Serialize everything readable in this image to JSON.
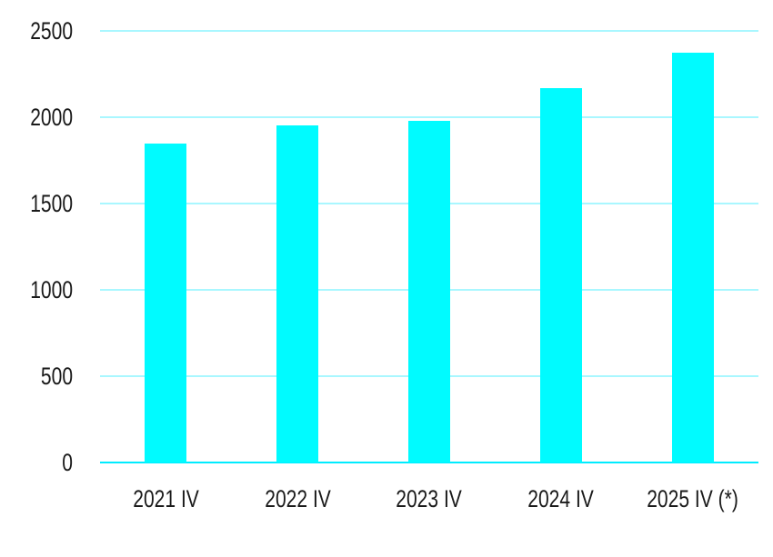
{
  "page": {
    "background": "#FFFFFF"
  },
  "chart_data": {
    "type": "bar",
    "title": "",
    "xlabel": "",
    "ylabel": "",
    "categories": [
      "2021 IV",
      "2022 IV",
      "2023 IV",
      "2024 IV",
      "2025 IV (*)"
    ],
    "values": [
      1850,
      1955,
      1980,
      2170,
      2375
    ],
    "ylim": [
      0,
      2500
    ],
    "y_ticks": [
      0,
      500,
      1000,
      1500,
      2000,
      2500
    ],
    "y_tick_labels": [
      "0",
      "500",
      "1000",
      "1500",
      "2000",
      "2500"
    ],
    "grid": true,
    "legend": "none",
    "bar_color": "#00FBFF",
    "gridline_color": "#A9F7FF",
    "baseline_color": "#00ECFF",
    "label_color": "#1A1A1A"
  }
}
